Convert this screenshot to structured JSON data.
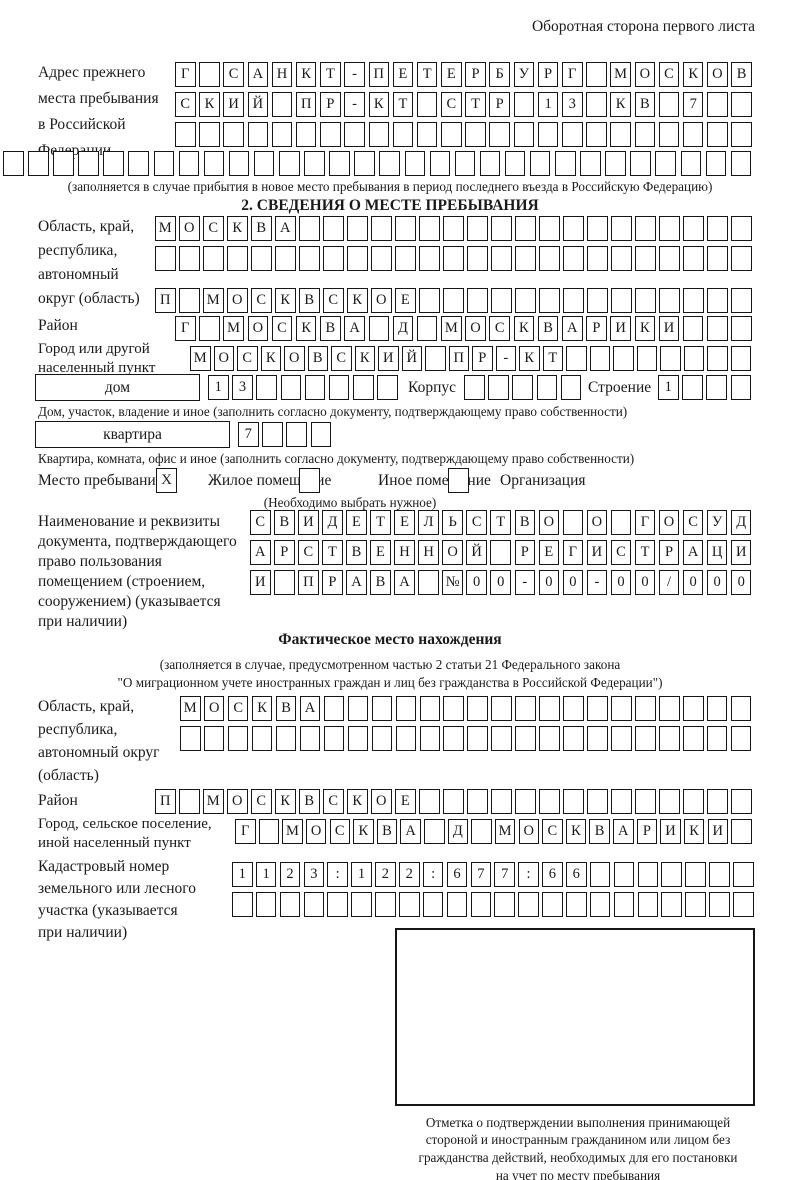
{
  "page_header": "Оборотная сторона первого листа",
  "prev_address": {
    "label_lines": [
      "Адрес прежнего",
      "места пребывания",
      "в Российской",
      "Федерации"
    ],
    "row1": [
      "Г",
      "",
      "С",
      "А",
      "Н",
      "К",
      "Т",
      "-",
      "П",
      "Е",
      "Т",
      "Е",
      "Р",
      "Б",
      "У",
      "Р",
      "Г",
      "",
      "М",
      "О",
      "С",
      "К",
      "О",
      "В"
    ],
    "row2": [
      "С",
      "К",
      "И",
      "Й",
      "",
      "П",
      "Р",
      "-",
      "К",
      "Т",
      "",
      "С",
      "Т",
      "Р",
      "",
      "1",
      "3",
      "",
      "К",
      "В",
      "",
      "7",
      "",
      ""
    ],
    "row3": [
      "",
      "",
      "",
      "",
      "",
      "",
      "",
      "",
      "",
      "",
      "",
      "",
      "",
      "",
      "",
      "",
      "",
      "",
      "",
      "",
      "",
      "",
      "",
      ""
    ],
    "row4": [
      "",
      "",
      "",
      "",
      "",
      "",
      "",
      "",
      "",
      "",
      "",
      "",
      "",
      "",
      "",
      "",
      "",
      "",
      "",
      "",
      "",
      "",
      "",
      "",
      "",
      "",
      "",
      "",
      "",
      ""
    ],
    "hint": "(заполняется в случае прибытия в новое место пребывания в период последнего въезда в Российскую Федерацию)"
  },
  "section2": {
    "title": "2. СВЕДЕНИЯ О МЕСТЕ ПРЕБЫВАНИЯ",
    "region": {
      "label_lines": [
        "Область, край,",
        "республика,",
        "автономный",
        "округ (область)"
      ],
      "row1": [
        "М",
        "О",
        "С",
        "К",
        "В",
        "А",
        "",
        "",
        "",
        "",
        "",
        "",
        "",
        "",
        "",
        "",
        "",
        "",
        "",
        "",
        "",
        "",
        "",
        "",
        ""
      ],
      "row2": [
        "",
        "",
        "",
        "",
        "",
        "",
        "",
        "",
        "",
        "",
        "",
        "",
        "",
        "",
        "",
        "",
        "",
        "",
        "",
        "",
        "",
        "",
        "",
        "",
        ""
      ]
    },
    "district": {
      "label": "Район",
      "row": [
        "П",
        "",
        "М",
        "О",
        "С",
        "К",
        "В",
        "С",
        "К",
        "О",
        "Е",
        "",
        "",
        "",
        "",
        "",
        "",
        "",
        "",
        "",
        "",
        "",
        "",
        "",
        ""
      ]
    },
    "city": {
      "label_lines": [
        "Город или другой",
        "населенный пункт"
      ],
      "row": [
        "Г",
        "",
        "М",
        "О",
        "С",
        "К",
        "В",
        "А",
        "",
        "Д",
        "",
        "М",
        "О",
        "С",
        "К",
        "В",
        "А",
        "Р",
        "И",
        "К",
        "И",
        "",
        "",
        ""
      ]
    },
    "street": {
      "label": "Улица",
      "row": [
        "М",
        "О",
        "С",
        "К",
        "О",
        "В",
        "С",
        "К",
        "И",
        "Й",
        "",
        "П",
        "Р",
        "-",
        "К",
        "Т",
        "",
        "",
        "",
        "",
        "",
        "",
        "",
        ""
      ]
    },
    "house": {
      "box_label": "дом",
      "cells": [
        "1",
        "3",
        "",
        "",
        "",
        "",
        "",
        ""
      ],
      "korpus_label": "Корпус",
      "korpus_cells": [
        "",
        "",
        "",
        "",
        ""
      ],
      "stroenie_label": "Строение",
      "stroenie_cells": [
        "1",
        "",
        "",
        ""
      ]
    },
    "house_hint": "Дом, участок, владение и иное (заполнить согласно документу, подтверждающему право собственности)",
    "apartment": {
      "box_label": "квартира",
      "cells": [
        "7",
        "",
        "",
        ""
      ]
    },
    "apartment_hint": "Квартира, комната, офис и иное (заполнить согласно документу, подтверждающему право собственности)",
    "stay_type": {
      "label": "Место пребывания:",
      "checkbox_residential": "X",
      "option_residential": "Жилое помещение",
      "checkbox_other": "",
      "option_other": "Иное помещение",
      "checkbox_org": "",
      "option_org": "Организация",
      "hint": "(Необходимо выбрать нужное)"
    },
    "document": {
      "label_lines": [
        "Наименование и реквизиты",
        "документа, подтверждающего",
        "право пользования",
        "помещением (строением,",
        "сооружением) (указывается",
        "при наличии)"
      ],
      "row1": [
        "С",
        "В",
        "И",
        "Д",
        "Е",
        "Т",
        "Е",
        "Л",
        "Ь",
        "С",
        "Т",
        "В",
        "О",
        "",
        "О",
        "",
        "Г",
        "О",
        "С",
        "У",
        "Д"
      ],
      "row2": [
        "А",
        "Р",
        "С",
        "Т",
        "В",
        "Е",
        "Н",
        "Н",
        "О",
        "Й",
        "",
        "Р",
        "Е",
        "Г",
        "И",
        "С",
        "Т",
        "Р",
        "А",
        "Ц",
        "И"
      ],
      "row3": [
        "И",
        "",
        "П",
        "Р",
        "А",
        "В",
        "А",
        "",
        "№",
        "0",
        "0",
        "-",
        "0",
        "0",
        "-",
        "0",
        "0",
        "/",
        "0",
        "0",
        "0"
      ]
    }
  },
  "section3": {
    "title": "Фактическое место нахождения",
    "hint_lines": [
      "(заполняется в случае, предусмотренном частью 2 статьи 21 Федерального закона",
      "\"О миграционном учете иностранных граждан и лиц без гражданства в Российской Федерации\")"
    ],
    "region": {
      "label_lines": [
        "Область, край,",
        "республика,",
        "автономный округ",
        "(область)"
      ],
      "row1": [
        "М",
        "О",
        "С",
        "К",
        "В",
        "А",
        "",
        "",
        "",
        "",
        "",
        "",
        "",
        "",
        "",
        "",
        "",
        "",
        "",
        "",
        "",
        "",
        "",
        ""
      ],
      "row2": [
        "",
        "",
        "",
        "",
        "",
        "",
        "",
        "",
        "",
        "",
        "",
        "",
        "",
        "",
        "",
        "",
        "",
        "",
        "",
        "",
        "",
        "",
        "",
        ""
      ]
    },
    "district": {
      "label": "Район",
      "row": [
        "П",
        "",
        "М",
        "О",
        "С",
        "К",
        "В",
        "С",
        "К",
        "О",
        "Е",
        "",
        "",
        "",
        "",
        "",
        "",
        "",
        "",
        "",
        "",
        "",
        "",
        "",
        ""
      ]
    },
    "city": {
      "label_lines": [
        "Город, сельское поселение,",
        "иной населенный пункт"
      ],
      "row": [
        "Г",
        "",
        "М",
        "О",
        "С",
        "К",
        "В",
        "А",
        "",
        "Д",
        "",
        "М",
        "О",
        "С",
        "К",
        "В",
        "А",
        "Р",
        "И",
        "К",
        "И",
        ""
      ]
    },
    "cadastral": {
      "label_lines": [
        "Кадастровый номер",
        "земельного или лесного",
        "участка (указывается",
        "при наличии)"
      ],
      "row1": [
        "1",
        "1",
        "2",
        "3",
        ":",
        "1",
        "2",
        "2",
        ":",
        "6",
        "7",
        "7",
        ":",
        "6",
        "6",
        "",
        "",
        "",
        "",
        "",
        "",
        ""
      ],
      "row2": [
        "",
        "",
        "",
        "",
        "",
        "",
        "",
        "",
        "",
        "",
        "",
        "",
        "",
        "",
        "",
        "",
        "",
        "",
        "",
        "",
        "",
        ""
      ]
    },
    "stamp_caption_lines": [
      "Отметка о подтверждении выполнения принимающей",
      "стороной и иностранным гражданином или лицом без",
      "гражданства действий, необходимых для его постановки",
      "на учет по месту пребывания"
    ]
  }
}
